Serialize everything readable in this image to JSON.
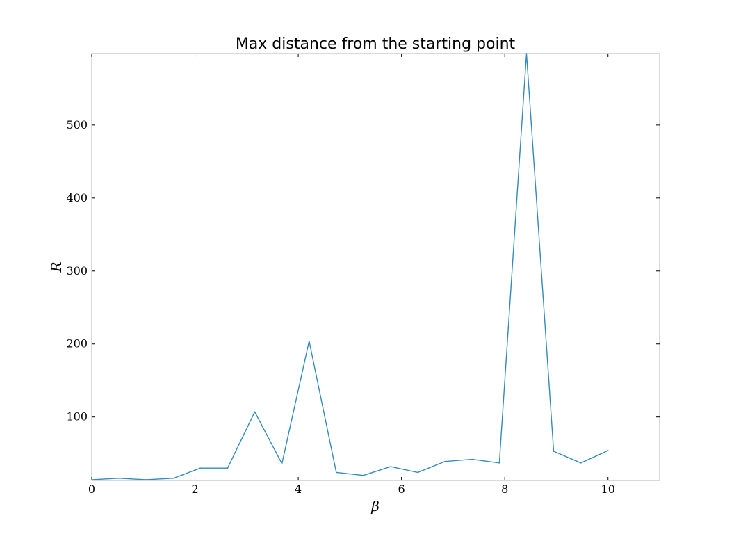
{
  "chart_data": {
    "type": "line",
    "title": "Max distance from the starting point",
    "xlabel": "β",
    "ylabel": "R",
    "xlim": [
      0,
      11
    ],
    "ylim": [
      13,
      598
    ],
    "grid": false,
    "xticks": [
      0,
      2,
      4,
      6,
      8,
      10
    ],
    "yticks": [
      100,
      200,
      300,
      400,
      500
    ],
    "xtick_labels": [
      "0",
      "2",
      "4",
      "6",
      "8",
      "10"
    ],
    "ytick_labels": [
      "100",
      "200",
      "300",
      "400",
      "500"
    ],
    "line_color": "#348abd",
    "series": [
      {
        "x": [
          0,
          0.526,
          1.053,
          1.579,
          2.105,
          2.632,
          3.158,
          3.684,
          4.211,
          4.737,
          5.263,
          5.789,
          6.316,
          6.842,
          7.368,
          7.895,
          8.421,
          8.947,
          9.474,
          10.0
        ],
        "values": [
          14,
          16,
          14,
          16,
          30,
          30,
          107,
          36,
          204,
          24,
          20,
          32,
          24,
          39,
          42,
          37,
          598,
          53,
          37,
          54
        ]
      }
    ]
  }
}
